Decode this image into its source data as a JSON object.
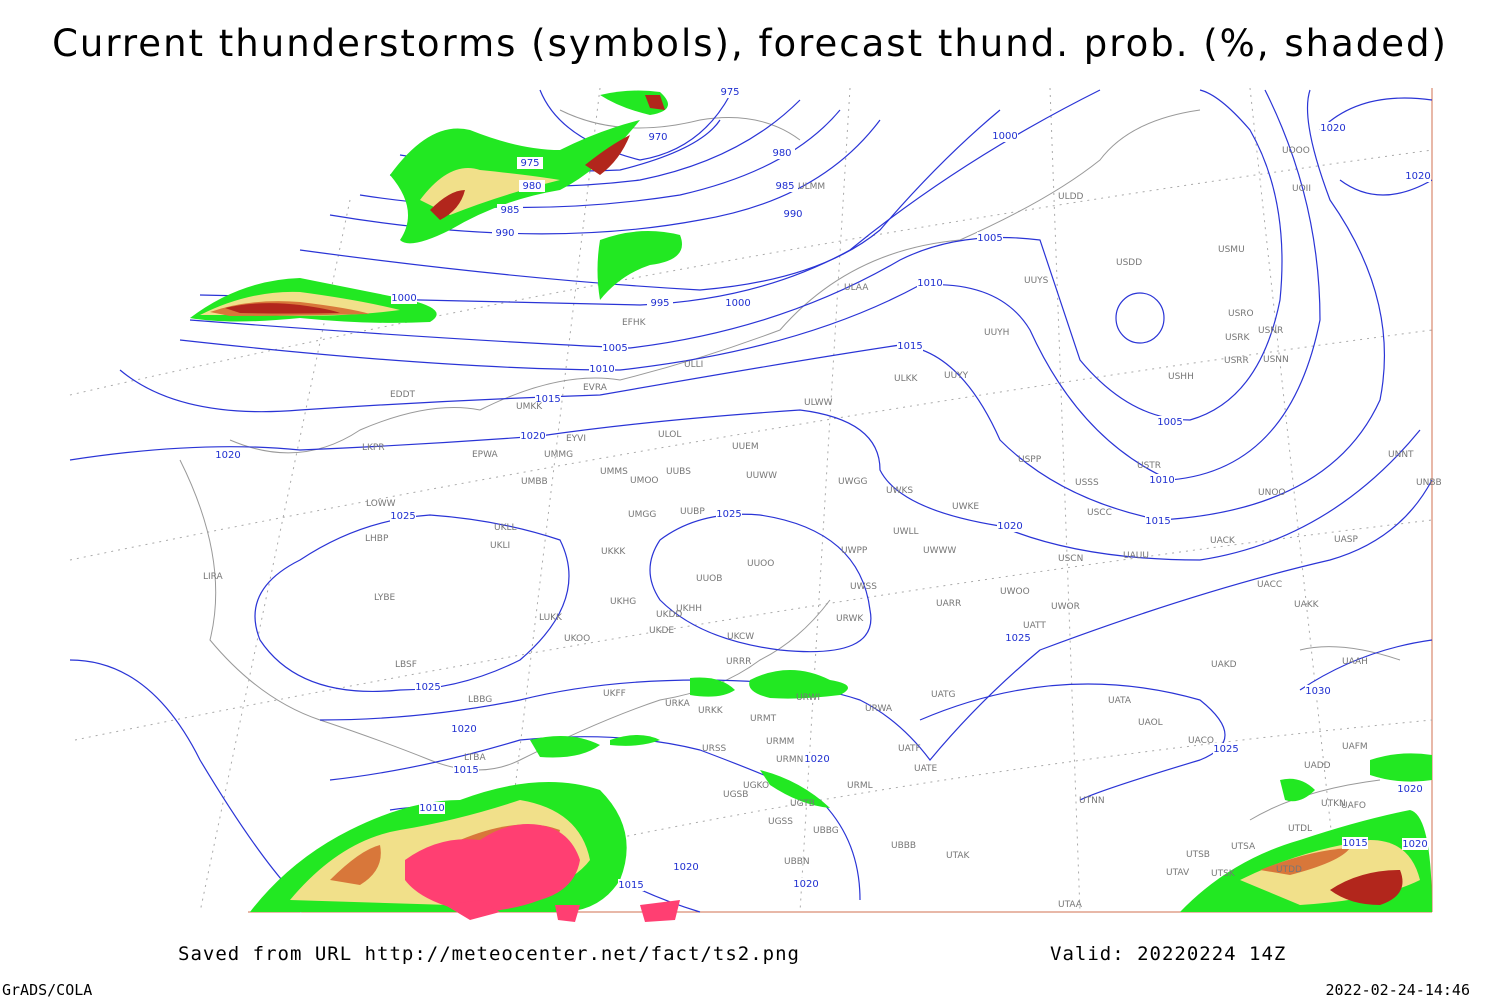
{
  "title": "Current thunderstorms (symbols), forecast thund. prob. (%, shaded)",
  "footer": {
    "source": "Saved from URL http://meteocenter.net/fact/ts2.png",
    "valid": "Valid: 20220224 14Z",
    "software": "GrADS/COLA",
    "timestamp": "2022-02-24-14:46"
  },
  "isobar_labels": [
    975,
    970,
    975,
    980,
    980,
    985,
    985,
    990,
    990,
    1000,
    1000,
    1005,
    995,
    1000,
    1005,
    1010,
    1010,
    1015,
    1015,
    1020,
    1020,
    1020,
    1020,
    1005,
    1010,
    1015,
    1025,
    1025,
    1020,
    1025,
    1025,
    1030,
    1020,
    1015,
    1025,
    1020,
    1010,
    1020,
    1015,
    1020,
    1020,
    1015,
    1020
  ],
  "stations": [
    "EDDT",
    "LKPR",
    "EPWA",
    "UMMG",
    "EYVI",
    "ULOL",
    "UUEM",
    "UMBB",
    "UMMS",
    "UMOO",
    "UUBS",
    "UUWW",
    "UWGG",
    "UWKS",
    "UWKE",
    "USSS",
    "USTR",
    "USCC",
    "UNOO",
    "UNNT",
    "UNBB",
    "LOWW",
    "LHBP",
    "UKLL",
    "UKLI",
    "UMGG",
    "UUBP",
    "UKKK",
    "UWPP",
    "UWWW",
    "UWLL",
    "USCN",
    "UAUU",
    "UACK",
    "UASP",
    "UUOB",
    "UUOO",
    "UWSS",
    "UARR",
    "UWOO",
    "UWOR",
    "UACC",
    "UAKK",
    "LYBE",
    "LIRA",
    "LUKK",
    "UKHG",
    "UKDD",
    "UKHH",
    "UKDE",
    "UKOO",
    "UKCW",
    "URWK",
    "UATT",
    "UAKD",
    "UAAH",
    "LBSF",
    "URRR",
    "LBBG",
    "UKFF",
    "URKA",
    "URKK",
    "URWI",
    "URWA",
    "UATG",
    "UATA",
    "UAOL",
    "UACO",
    "UAFM",
    "URMT",
    "URSS",
    "URMM",
    "URMN",
    "UATE",
    "UATF",
    "URML",
    "UADD",
    "LTBA",
    "UGKO",
    "UGSB",
    "UGTB",
    "UTNN",
    "UTKN",
    "UAFO",
    "UGSS",
    "UBBG",
    "UTDL",
    "UBBB",
    "UBBN",
    "UTSB",
    "UTSA",
    "UTAK",
    "UTAV",
    "UTSK",
    "UTDD",
    "UTAA",
    "ULDD",
    "USDD",
    "USMU",
    "UUYS",
    "UOOO",
    "UOII",
    "ULAA",
    "UUYH",
    "USRO",
    "USRK",
    "USNR",
    "USPP",
    "USRR",
    "USNN",
    "USHH",
    "ULKK",
    "UUYY",
    "ULWW",
    "UMKK",
    "EVRA",
    "ULLI",
    "ULMM",
    "EFHK"
  ]
}
